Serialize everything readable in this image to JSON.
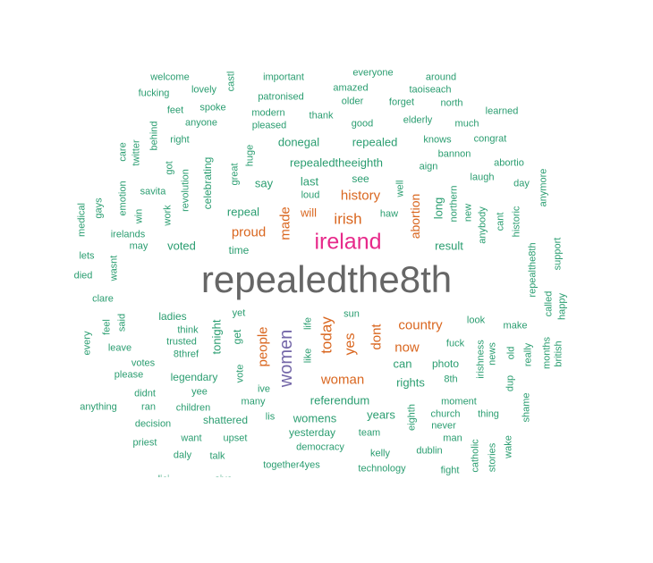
{
  "colors": {
    "small": "#2a9d70",
    "medium": "#d9661f",
    "women": "#7467a8",
    "ireland": "#e7298a",
    "largest": "#666666"
  },
  "words": [
    {
      "text": "repealedthe8th",
      "tier": "largest"
    },
    {
      "text": "ireland",
      "tier": "ireland"
    },
    {
      "text": "women",
      "tier": "women"
    },
    {
      "text": "irish",
      "tier": "medium"
    },
    {
      "text": "history",
      "tier": "medium"
    },
    {
      "text": "proud",
      "tier": "medium"
    },
    {
      "text": "made",
      "tier": "medium"
    },
    {
      "text": "will",
      "tier": "medium"
    },
    {
      "text": "abortion",
      "tier": "medium"
    },
    {
      "text": "people",
      "tier": "medium"
    },
    {
      "text": "today",
      "tier": "medium"
    },
    {
      "text": "yes",
      "tier": "medium"
    },
    {
      "text": "dont",
      "tier": "medium"
    },
    {
      "text": "country",
      "tier": "medium"
    },
    {
      "text": "now",
      "tier": "medium"
    },
    {
      "text": "woman",
      "tier": "medium"
    },
    {
      "text": "welcome",
      "tier": "small"
    },
    {
      "text": "castl",
      "tier": "small"
    },
    {
      "text": "important",
      "tier": "small"
    },
    {
      "text": "everyone",
      "tier": "small"
    },
    {
      "text": "around",
      "tier": "small"
    },
    {
      "text": "fucking",
      "tier": "small"
    },
    {
      "text": "lovely",
      "tier": "small"
    },
    {
      "text": "patronised",
      "tier": "small"
    },
    {
      "text": "amazed",
      "tier": "small"
    },
    {
      "text": "taoiseach",
      "tier": "small"
    },
    {
      "text": "older",
      "tier": "small"
    },
    {
      "text": "forget",
      "tier": "small"
    },
    {
      "text": "north",
      "tier": "small"
    },
    {
      "text": "feet",
      "tier": "small"
    },
    {
      "text": "spoke",
      "tier": "small"
    },
    {
      "text": "modern",
      "tier": "small"
    },
    {
      "text": "thank",
      "tier": "small"
    },
    {
      "text": "elderly",
      "tier": "small"
    },
    {
      "text": "learned",
      "tier": "small"
    },
    {
      "text": "anyone",
      "tier": "small"
    },
    {
      "text": "pleased",
      "tier": "small"
    },
    {
      "text": "good",
      "tier": "small"
    },
    {
      "text": "much",
      "tier": "small"
    },
    {
      "text": "care",
      "tier": "small"
    },
    {
      "text": "behind",
      "tier": "small"
    },
    {
      "text": "right",
      "tier": "small"
    },
    {
      "text": "huge",
      "tier": "small"
    },
    {
      "text": "donegal",
      "tier": "small"
    },
    {
      "text": "repealed",
      "tier": "small"
    },
    {
      "text": "knows",
      "tier": "small"
    },
    {
      "text": "congrat",
      "tier": "small"
    },
    {
      "text": "twitter",
      "tier": "small"
    },
    {
      "text": "bannon",
      "tier": "small"
    },
    {
      "text": "got",
      "tier": "small"
    },
    {
      "text": "celebrating",
      "tier": "small"
    },
    {
      "text": "great",
      "tier": "small"
    },
    {
      "text": "repealedtheeighth",
      "tier": "small"
    },
    {
      "text": "aign",
      "tier": "small"
    },
    {
      "text": "abortio",
      "tier": "small"
    },
    {
      "text": "anymore",
      "tier": "small"
    },
    {
      "text": "emotion",
      "tier": "small"
    },
    {
      "text": "revolution",
      "tier": "small"
    },
    {
      "text": "say",
      "tier": "small"
    },
    {
      "text": "last",
      "tier": "small"
    },
    {
      "text": "see",
      "tier": "small"
    },
    {
      "text": "laugh",
      "tier": "small"
    },
    {
      "text": "day",
      "tier": "small"
    },
    {
      "text": "gays",
      "tier": "small"
    },
    {
      "text": "savita",
      "tier": "small"
    },
    {
      "text": "well",
      "tier": "small"
    },
    {
      "text": "loud",
      "tier": "small"
    },
    {
      "text": "medical",
      "tier": "small"
    },
    {
      "text": "win",
      "tier": "small"
    },
    {
      "text": "work",
      "tier": "small"
    },
    {
      "text": "repeal",
      "tier": "small"
    },
    {
      "text": "haw",
      "tier": "small"
    },
    {
      "text": "long",
      "tier": "small"
    },
    {
      "text": "northern",
      "tier": "small"
    },
    {
      "text": "new",
      "tier": "small"
    },
    {
      "text": "anybody",
      "tier": "small"
    },
    {
      "text": "cant",
      "tier": "small"
    },
    {
      "text": "historic",
      "tier": "small"
    },
    {
      "text": "irelands",
      "tier": "small"
    },
    {
      "text": "may",
      "tier": "small"
    },
    {
      "text": "voted",
      "tier": "small"
    },
    {
      "text": "time",
      "tier": "small"
    },
    {
      "text": "result",
      "tier": "small"
    },
    {
      "text": "repealthe8th",
      "tier": "small"
    },
    {
      "text": "support",
      "tier": "small"
    },
    {
      "text": "lets",
      "tier": "small"
    },
    {
      "text": "wasnt",
      "tier": "small"
    },
    {
      "text": "died",
      "tier": "small"
    },
    {
      "text": "clare",
      "tier": "small"
    },
    {
      "text": "called",
      "tier": "small"
    },
    {
      "text": "happy",
      "tier": "small"
    },
    {
      "text": "yet",
      "tier": "small"
    },
    {
      "text": "sun",
      "tier": "small"
    },
    {
      "text": "feel",
      "tier": "small"
    },
    {
      "text": "said",
      "tier": "small"
    },
    {
      "text": "ladies",
      "tier": "small"
    },
    {
      "text": "tonight",
      "tier": "small"
    },
    {
      "text": "life",
      "tier": "small"
    },
    {
      "text": "look",
      "tier": "small"
    },
    {
      "text": "make",
      "tier": "small"
    },
    {
      "text": "every",
      "tier": "small"
    },
    {
      "text": "think",
      "tier": "small"
    },
    {
      "text": "get",
      "tier": "small"
    },
    {
      "text": "fuck",
      "tier": "small"
    },
    {
      "text": "irishness",
      "tier": "small"
    },
    {
      "text": "months",
      "tier": "small"
    },
    {
      "text": "leave",
      "tier": "small"
    },
    {
      "text": "trusted",
      "tier": "small"
    },
    {
      "text": "8thref",
      "tier": "small"
    },
    {
      "text": "like",
      "tier": "small"
    },
    {
      "text": "news",
      "tier": "small"
    },
    {
      "text": "old",
      "tier": "small"
    },
    {
      "text": "really",
      "tier": "small"
    },
    {
      "text": "british",
      "tier": "small"
    },
    {
      "text": "votes",
      "tier": "small"
    },
    {
      "text": "can",
      "tier": "small"
    },
    {
      "text": "photo",
      "tier": "small"
    },
    {
      "text": "please",
      "tier": "small"
    },
    {
      "text": "legendary",
      "tier": "small"
    },
    {
      "text": "vote",
      "tier": "small"
    },
    {
      "text": "8th",
      "tier": "small"
    },
    {
      "text": "rights",
      "tier": "small"
    },
    {
      "text": "dup",
      "tier": "small"
    },
    {
      "text": "didnt",
      "tier": "small"
    },
    {
      "text": "yee",
      "tier": "small"
    },
    {
      "text": "ive",
      "tier": "small"
    },
    {
      "text": "referendum",
      "tier": "small"
    },
    {
      "text": "moment",
      "tier": "small"
    },
    {
      "text": "anything",
      "tier": "small"
    },
    {
      "text": "ran",
      "tier": "small"
    },
    {
      "text": "children",
      "tier": "small"
    },
    {
      "text": "many",
      "tier": "small"
    },
    {
      "text": "years",
      "tier": "small"
    },
    {
      "text": "eighth",
      "tier": "small"
    },
    {
      "text": "church",
      "tier": "small"
    },
    {
      "text": "thing",
      "tier": "small"
    },
    {
      "text": "shame",
      "tier": "small"
    },
    {
      "text": "decision",
      "tier": "small"
    },
    {
      "text": "shattered",
      "tier": "small"
    },
    {
      "text": "lis",
      "tier": "small"
    },
    {
      "text": "womens",
      "tier": "small"
    },
    {
      "text": "never",
      "tier": "small"
    },
    {
      "text": "yesterday",
      "tier": "small"
    },
    {
      "text": "team",
      "tier": "small"
    },
    {
      "text": "man",
      "tier": "small"
    },
    {
      "text": "priest",
      "tier": "small"
    },
    {
      "text": "want",
      "tier": "small"
    },
    {
      "text": "upset",
      "tier": "small"
    },
    {
      "text": "democracy",
      "tier": "small"
    },
    {
      "text": "catholic",
      "tier": "small"
    },
    {
      "text": "wake",
      "tier": "small"
    },
    {
      "text": "daly",
      "tier": "small"
    },
    {
      "text": "talk",
      "tier": "small"
    },
    {
      "text": "kelly",
      "tier": "small"
    },
    {
      "text": "dublin",
      "tier": "small"
    },
    {
      "text": "stories",
      "tier": "small"
    },
    {
      "text": "together4yes",
      "tier": "small"
    },
    {
      "text": "technology",
      "tier": "small"
    },
    {
      "text": "fight",
      "tier": "small"
    },
    {
      "text": "lici",
      "tier": "small"
    },
    {
      "text": "sive",
      "tier": "small"
    }
  ]
}
